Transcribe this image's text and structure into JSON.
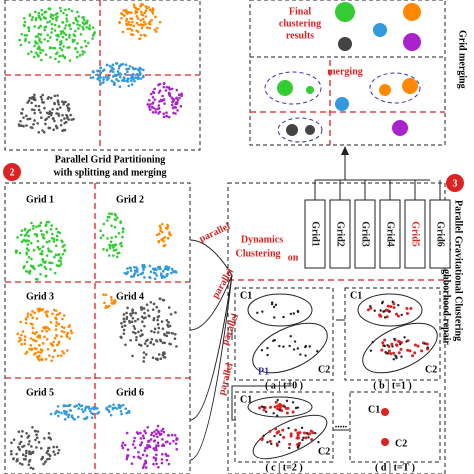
{
  "top_right": {
    "title": "Grid merging",
    "final_lines": [
      "Final",
      "clustering",
      "results"
    ],
    "merging": "merging"
  },
  "step2": {
    "number": "2",
    "title_lines": [
      "Parallel Grid Partitioning",
      "with splitting and merging"
    ],
    "grids": [
      "Grid 1",
      "Grid 2",
      "Grid 3",
      "Grid 4",
      "Grid 5",
      "Grid 6"
    ],
    "parallel_labels": [
      "parallel",
      "parallel",
      "parallel",
      "parallel"
    ]
  },
  "step3": {
    "number": "3",
    "title_lines": [
      "Parallel Gravitational Clustering",
      "with neighborhood repair"
    ],
    "dynamics_lines": [
      "Dynamics",
      "Clustering",
      "on"
    ],
    "grid_boxes": [
      "Grid1",
      "Grid2",
      "Grid3",
      "Grid4",
      "Grid5",
      "Grid6"
    ],
    "panels": [
      {
        "c1": "C1",
        "c2": "C2",
        "p1": "P1",
        "caption": "( a | t=0 )"
      },
      {
        "c1": "C1",
        "c2": "C2",
        "caption": "( b | t=1 )"
      },
      {
        "c1": "C1",
        "c2": "C2",
        "caption": "( c | t=2 )"
      },
      {
        "c1": "C1",
        "c2": "C2",
        "caption": "( d | t=T )"
      }
    ],
    "dots": "....."
  }
}
